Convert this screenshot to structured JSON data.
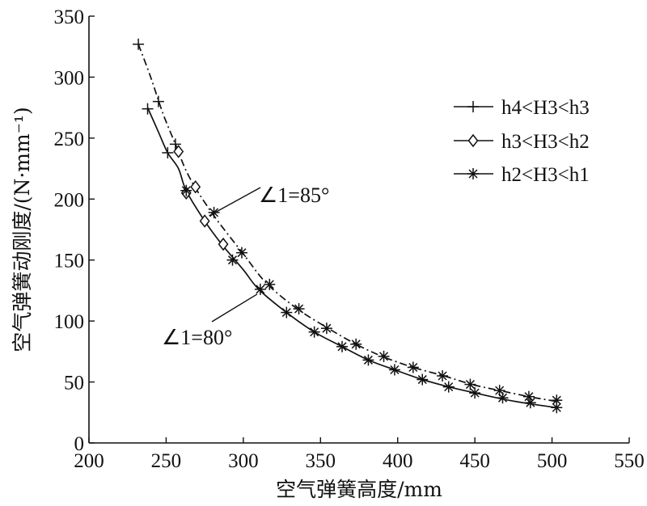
{
  "chart_data": {
    "type": "line",
    "xlabel": "空气弹簧高度/mm",
    "ylabel": "空气弹簧动刚度/(N·mm⁻¹)",
    "xlim": [
      200,
      550
    ],
    "ylim": [
      0,
      350
    ],
    "xticks": [
      "200",
      "250",
      "300",
      "350",
      "400",
      "450",
      "500",
      "550"
    ],
    "yticks": [
      "0",
      "50",
      "100",
      "150",
      "200",
      "250",
      "300",
      "350"
    ],
    "grid": false,
    "legend_position": "top-right",
    "legend": [
      {
        "label": "h4<H3<h3",
        "marker": "plus"
      },
      {
        "label": "h3<H3<h2",
        "marker": "diamond"
      },
      {
        "label": "h2<H3<h1",
        "marker": "asterisk"
      }
    ],
    "series": [
      {
        "name": "∠1=85°",
        "line_style": "dash-dot",
        "curve": [
          [
            232,
            327
          ],
          [
            240,
            300
          ],
          [
            248,
            270
          ],
          [
            256,
            245
          ],
          [
            265,
            218
          ],
          [
            280,
            188
          ],
          [
            300,
            155
          ],
          [
            315,
            131
          ],
          [
            335,
            110
          ],
          [
            355,
            94
          ],
          [
            373,
            81
          ],
          [
            390,
            71
          ],
          [
            410,
            62
          ],
          [
            430,
            55
          ],
          [
            448,
            48
          ],
          [
            466,
            43
          ],
          [
            485,
            38
          ],
          [
            503,
            34
          ]
        ],
        "points": [
          {
            "x": 232,
            "y": 327,
            "marker": "plus"
          },
          {
            "x": 245,
            "y": 280,
            "marker": "plus"
          },
          {
            "x": 256,
            "y": 245,
            "marker": "plus"
          },
          {
            "x": 258,
            "y": 239,
            "marker": "diamond"
          },
          {
            "x": 269,
            "y": 210,
            "marker": "diamond"
          },
          {
            "x": 281,
            "y": 189,
            "marker": "asterisk"
          },
          {
            "x": 299,
            "y": 156,
            "marker": "asterisk"
          },
          {
            "x": 317,
            "y": 130,
            "marker": "asterisk"
          },
          {
            "x": 336,
            "y": 110,
            "marker": "asterisk"
          },
          {
            "x": 354,
            "y": 94,
            "marker": "asterisk"
          },
          {
            "x": 373,
            "y": 81,
            "marker": "asterisk"
          },
          {
            "x": 391,
            "y": 71,
            "marker": "asterisk"
          },
          {
            "x": 410,
            "y": 62,
            "marker": "asterisk"
          },
          {
            "x": 429,
            "y": 55,
            "marker": "asterisk"
          },
          {
            "x": 447,
            "y": 48,
            "marker": "asterisk"
          },
          {
            "x": 466,
            "y": 43,
            "marker": "asterisk"
          },
          {
            "x": 485,
            "y": 38,
            "marker": "asterisk"
          },
          {
            "x": 503,
            "y": 35,
            "marker": "asterisk"
          }
        ]
      },
      {
        "name": "∠1=80°",
        "line_style": "solid",
        "curve": [
          [
            238,
            275
          ],
          [
            245,
            255
          ],
          [
            251,
            238
          ],
          [
            258,
            225
          ],
          [
            263,
            207
          ],
          [
            275,
            182
          ],
          [
            286,
            163
          ],
          [
            300,
            142
          ],
          [
            310,
            126
          ],
          [
            328,
            107
          ],
          [
            346,
            91
          ],
          [
            364,
            79
          ],
          [
            381,
            68
          ],
          [
            398,
            60
          ],
          [
            416,
            52
          ],
          [
            433,
            46
          ],
          [
            450,
            41
          ],
          [
            468,
            36
          ],
          [
            486,
            32
          ],
          [
            503,
            29
          ]
        ],
        "points": [
          {
            "x": 238,
            "y": 274,
            "marker": "plus"
          },
          {
            "x": 251,
            "y": 238,
            "marker": "plus"
          },
          {
            "x": 263,
            "y": 205,
            "marker": "diamond"
          },
          {
            "x": 275,
            "y": 182,
            "marker": "diamond"
          },
          {
            "x": 287,
            "y": 163,
            "marker": "diamond"
          },
          {
            "x": 263,
            "y": 207,
            "marker": "asterisk"
          },
          {
            "x": 293,
            "y": 150,
            "marker": "asterisk"
          },
          {
            "x": 311,
            "y": 126,
            "marker": "asterisk"
          },
          {
            "x": 328,
            "y": 107,
            "marker": "asterisk"
          },
          {
            "x": 346,
            "y": 91,
            "marker": "asterisk"
          },
          {
            "x": 364,
            "y": 79,
            "marker": "asterisk"
          },
          {
            "x": 381,
            "y": 68,
            "marker": "asterisk"
          },
          {
            "x": 398,
            "y": 60,
            "marker": "asterisk"
          },
          {
            "x": 416,
            "y": 52,
            "marker": "asterisk"
          },
          {
            "x": 433,
            "y": 46,
            "marker": "asterisk"
          },
          {
            "x": 450,
            "y": 41,
            "marker": "asterisk"
          },
          {
            "x": 468,
            "y": 37,
            "marker": "asterisk"
          },
          {
            "x": 486,
            "y": 33,
            "marker": "asterisk"
          },
          {
            "x": 503,
            "y": 29,
            "marker": "asterisk"
          }
        ]
      }
    ],
    "annotations": [
      {
        "text": "∠1=85°",
        "points_to": "∠1=85°",
        "x": 281,
        "y": 189
      },
      {
        "text": "∠1=80°",
        "points_to": "∠1=80°",
        "x": 310,
        "y": 126
      }
    ]
  }
}
